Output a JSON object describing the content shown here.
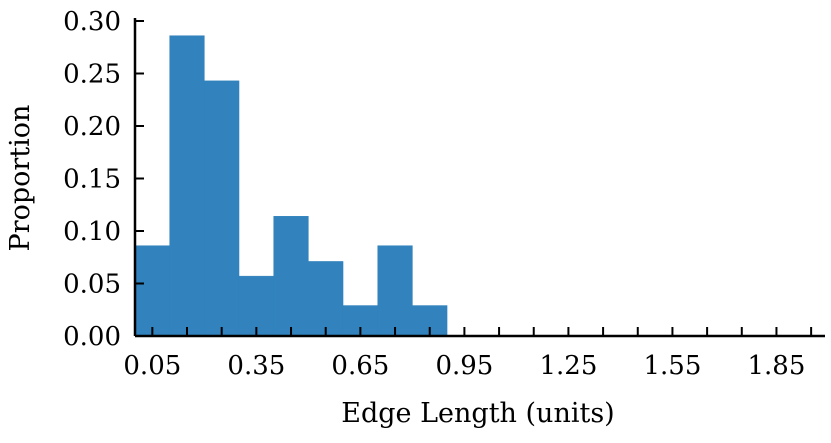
{
  "chart_data": {
    "type": "bar",
    "xlabel": "Edge Length (units)",
    "ylabel": "Proportion",
    "xlim": [
      0.0,
      1.99
    ],
    "ylim": [
      0.0,
      0.3
    ],
    "bin_width": 0.1,
    "bins": [
      {
        "x0": 0.0,
        "x1": 0.1,
        "value": 0.086
      },
      {
        "x0": 0.1,
        "x1": 0.2,
        "value": 0.286
      },
      {
        "x0": 0.2,
        "x1": 0.3,
        "value": 0.243
      },
      {
        "x0": 0.3,
        "x1": 0.4,
        "value": 0.057
      },
      {
        "x0": 0.4,
        "x1": 0.5,
        "value": 0.114
      },
      {
        "x0": 0.5,
        "x1": 0.6,
        "value": 0.071
      },
      {
        "x0": 0.6,
        "x1": 0.7,
        "value": 0.029
      },
      {
        "x0": 0.7,
        "x1": 0.8,
        "value": 0.086
      },
      {
        "x0": 0.8,
        "x1": 0.9,
        "value": 0.029
      }
    ],
    "xticks": [
      0.05,
      0.35,
      0.65,
      0.95,
      1.25,
      1.55,
      1.85
    ],
    "xtick_labels": [
      "0.05",
      "0.35",
      "0.65",
      "0.95",
      "1.25",
      "1.55",
      "1.85"
    ],
    "x_minor_step": 0.1,
    "yticks": [
      0.0,
      0.05,
      0.1,
      0.15,
      0.2,
      0.25,
      0.3
    ],
    "ytick_labels": [
      "0.00",
      "0.05",
      "0.10",
      "0.15",
      "0.20",
      "0.25",
      "0.30"
    ],
    "bar_color": "#3182bd",
    "grid": false,
    "legend": "none"
  }
}
